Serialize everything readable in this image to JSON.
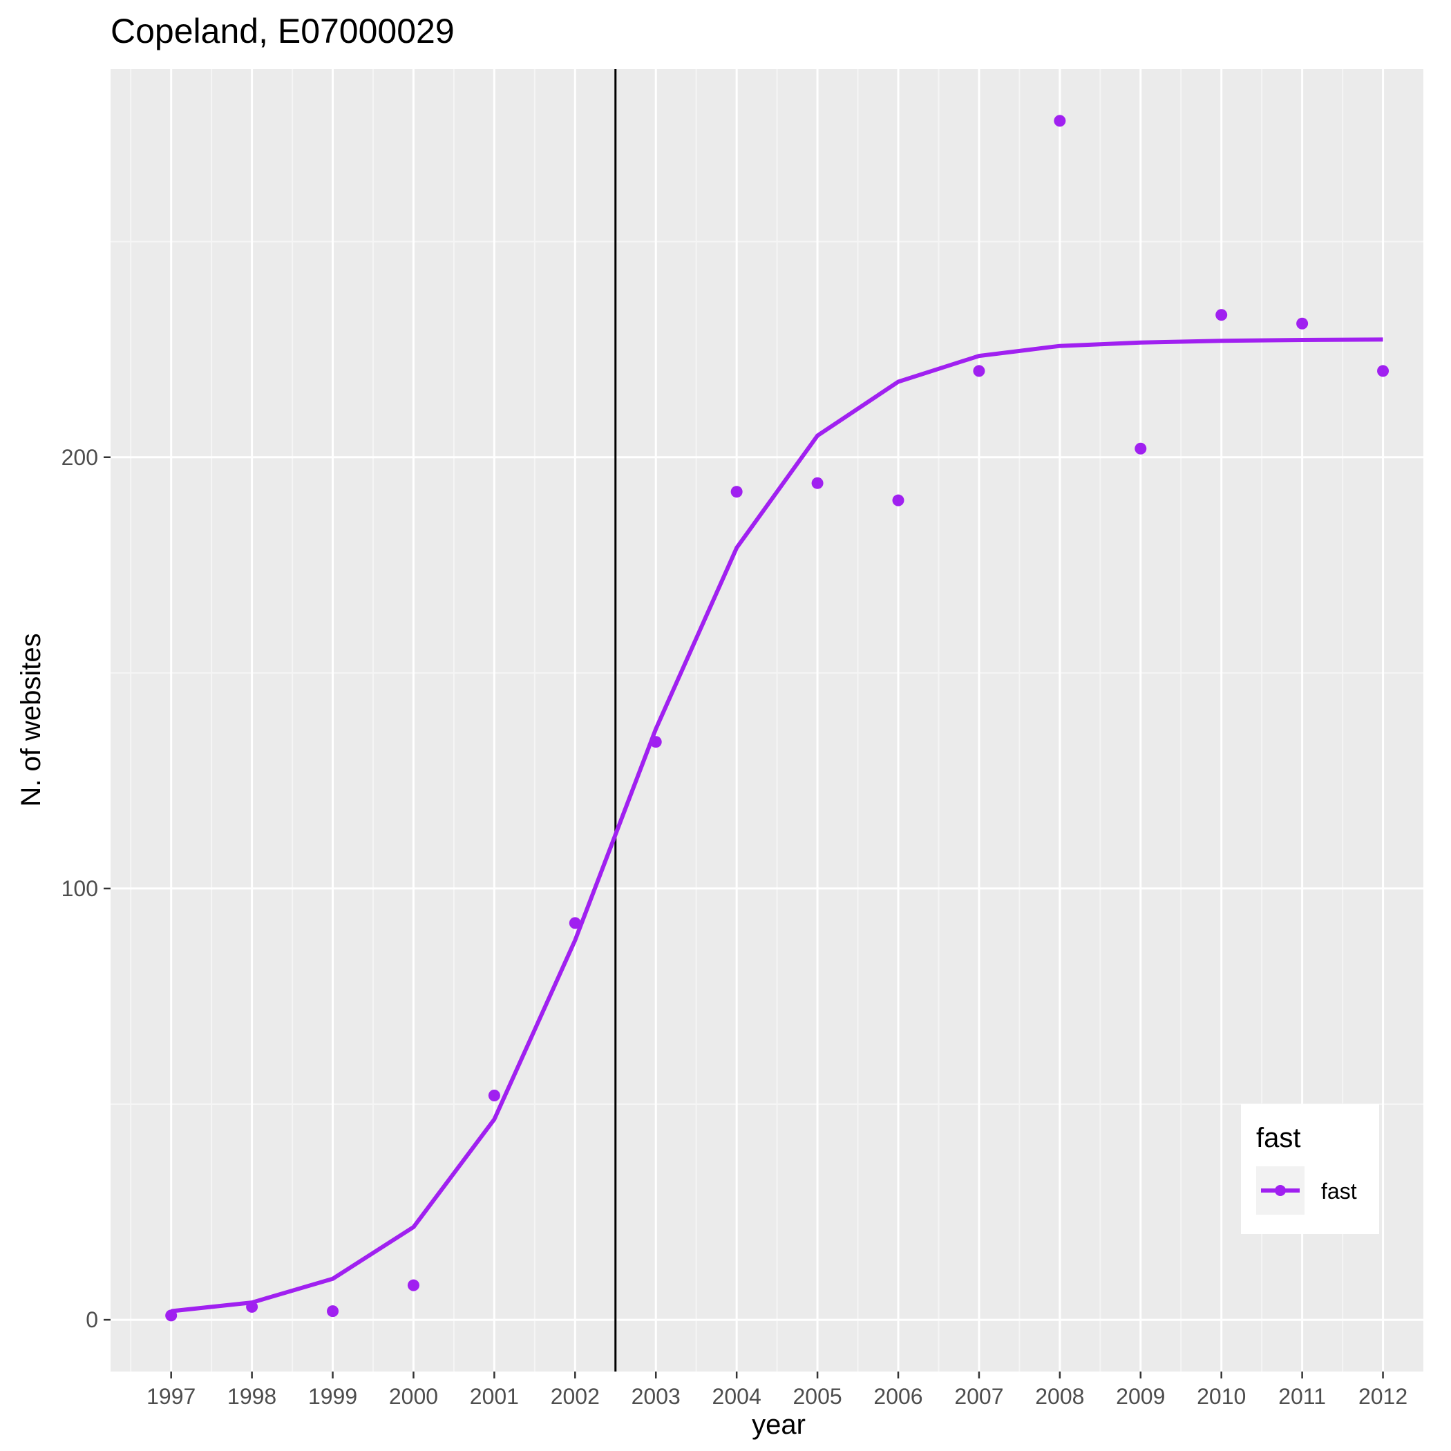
{
  "chart_data": {
    "type": "line",
    "title": "Copeland, E07000029",
    "xlabel": "year",
    "ylabel": "N. of websites",
    "x": [
      1997,
      1998,
      1999,
      2000,
      2001,
      2002,
      2003,
      2004,
      2005,
      2006,
      2007,
      2008,
      2009,
      2010,
      2011,
      2012
    ],
    "x_tick_labels": [
      "1997",
      "1998",
      "1999",
      "2000",
      "2001",
      "2002",
      "2003",
      "2004",
      "2005",
      "2006",
      "2007",
      "2008",
      "2009",
      "2010",
      "2011",
      "2012"
    ],
    "y_ticks": [
      0,
      100,
      200
    ],
    "y_tick_labels": [
      "0",
      "100",
      "200"
    ],
    "xlim": [
      1996.25,
      2012.5
    ],
    "ylim": [
      -12,
      290
    ],
    "grid": true,
    "vline_x": 2002.5,
    "legend": {
      "title": "fast",
      "position": "bottom-right",
      "entries": [
        "fast"
      ]
    },
    "series": [
      {
        "name": "fast",
        "color": "#a020f0",
        "points": [
          1,
          3,
          2,
          8,
          52,
          92,
          134,
          192,
          194,
          190,
          220,
          278,
          202,
          233,
          231,
          220
        ],
        "fit": [
          2,
          4,
          9.5,
          21.5,
          46.5,
          88,
          137,
          179,
          205,
          217.5,
          223.5,
          225.8,
          226.6,
          227,
          227.2,
          227.3
        ]
      }
    ],
    "colors": {
      "panel_background": "#ebebeb",
      "grid_major": "#ffffff",
      "grid_minor": "#f5f5f5",
      "series": "#a020f0",
      "vline": "#000000"
    }
  }
}
